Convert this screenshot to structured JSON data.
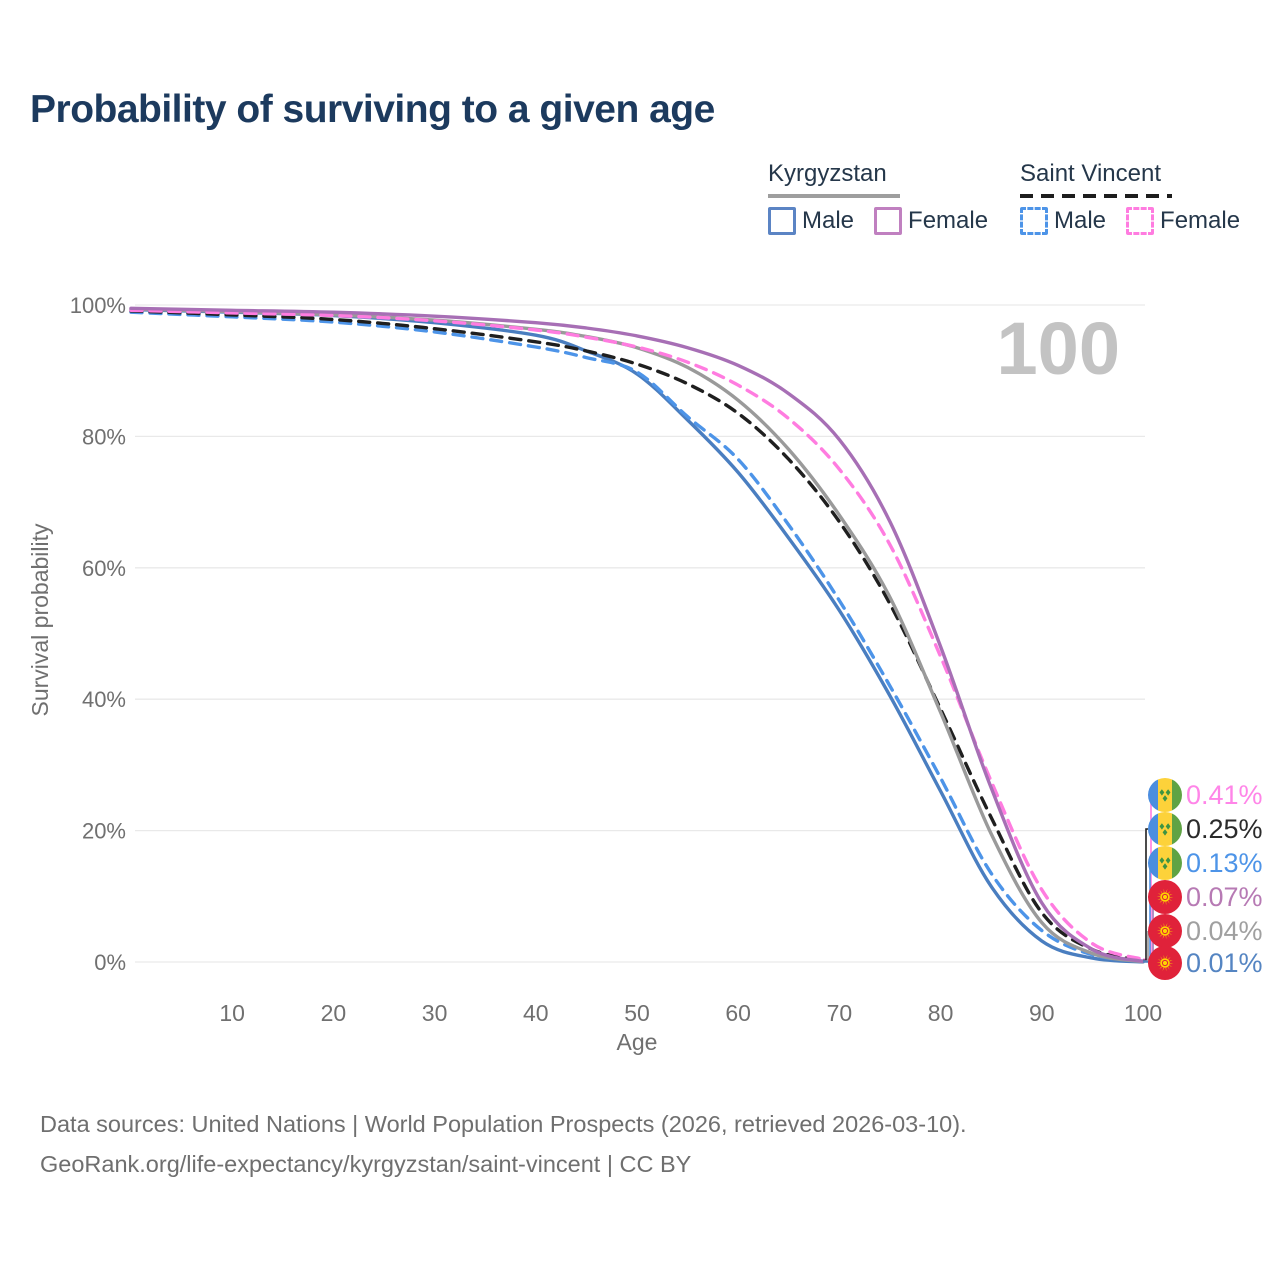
{
  "title": "Probability of surviving to a given age",
  "watermark": "100",
  "legend": {
    "groups": [
      {
        "country": "Kyrgyzstan",
        "underline_color": "#9e9e9e",
        "underline_dashed": false,
        "items": [
          {
            "label": "Male",
            "color": "#5b84c4",
            "dashed": false
          },
          {
            "label": "Female",
            "color": "#c080c0",
            "dashed": false
          }
        ]
      },
      {
        "country": "Saint Vincent",
        "underline_color": "#1d1d1d",
        "underline_dashed": true,
        "items": [
          {
            "label": "Male",
            "color": "#4d94e8",
            "dashed": true
          },
          {
            "label": "Female",
            "color": "#ff7ce0",
            "dashed": true
          }
        ]
      }
    ]
  },
  "chart_data": {
    "type": "line",
    "title": "Probability of surviving to a given age",
    "xlabel": "Age",
    "ylabel": "Survival probability",
    "xlim": [
      0,
      100
    ],
    "ylim": [
      0,
      100
    ],
    "x_ticks": [
      10,
      20,
      30,
      40,
      50,
      60,
      70,
      80,
      90,
      100
    ],
    "y_tick_labels": [
      "0%",
      "20%",
      "40%",
      "60%",
      "80%",
      "100%"
    ],
    "grid": "horizontal",
    "legend_position": "top-right",
    "x": [
      0,
      10,
      20,
      30,
      40,
      45,
      50,
      55,
      60,
      65,
      70,
      75,
      80,
      85,
      90,
      95,
      100
    ],
    "series": [
      {
        "id": "sv-female",
        "name": "Saint Vincent Female",
        "country": "Saint Vincent",
        "sex": "Female",
        "color": "#ff7ce0",
        "dashed": true,
        "end_label": "0.41%",
        "end_label_color": "#ff85e8",
        "flag": "saint-vincent",
        "values": [
          99.2,
          98.8,
          98.4,
          97.6,
          96.2,
          95.1,
          93.6,
          91.3,
          87.8,
          82.7,
          75.0,
          63.5,
          46.5,
          27.5,
          11.0,
          2.8,
          0.41
        ]
      },
      {
        "id": "sv-total",
        "name": "Saint Vincent",
        "country": "Saint Vincent",
        "sex": "Both",
        "color": "#1f1f1f",
        "dashed": true,
        "end_label": "0.25%",
        "end_label_color": "#2b2b2b",
        "flag": "saint-vincent",
        "values": [
          99.1,
          98.5,
          97.8,
          96.4,
          94.4,
          93.0,
          91.0,
          88.0,
          83.5,
          76.5,
          67.0,
          54.5,
          38.5,
          22.0,
          7.5,
          1.9,
          0.25
        ]
      },
      {
        "id": "sv-male",
        "name": "Saint Vincent Male",
        "country": "Saint Vincent",
        "sex": "Male",
        "color": "#4d94e8",
        "dashed": true,
        "end_label": "0.13%",
        "end_label_color": "#4d94e8",
        "flag": "saint-vincent",
        "values": [
          98.9,
          98.2,
          97.4,
          95.9,
          93.6,
          92.0,
          89.8,
          83.0,
          76.5,
          66.5,
          55.0,
          42.0,
          28.0,
          13.5,
          4.8,
          1.1,
          0.13
        ]
      },
      {
        "id": "kg-female",
        "name": "Kyrgyzstan Female",
        "country": "Kyrgyzstan",
        "sex": "Female",
        "color": "#a76fb5",
        "dashed": false,
        "end_label": "0.07%",
        "end_label_color": "#b77ab4",
        "flag": "kyrgyzstan",
        "values": [
          99.5,
          99.2,
          98.9,
          98.3,
          97.3,
          96.5,
          95.3,
          93.5,
          90.8,
          86.5,
          79.5,
          67.0,
          48.0,
          26.5,
          9.0,
          1.9,
          0.07
        ]
      },
      {
        "id": "kg-total",
        "name": "Kyrgyzstan",
        "country": "Kyrgyzstan",
        "sex": "Both",
        "color": "#9a9a9a",
        "dashed": false,
        "end_label": "0.04%",
        "end_label_color": "#a0a0a0",
        "flag": "kyrgyzstan",
        "values": [
          99.4,
          99.0,
          98.5,
          97.7,
          96.3,
          95.2,
          93.5,
          90.5,
          85.5,
          78.0,
          68.0,
          55.5,
          38.0,
          19.5,
          6.0,
          1.3,
          0.04
        ]
      },
      {
        "id": "kg-male",
        "name": "Kyrgyzstan Male",
        "country": "Kyrgyzstan",
        "sex": "Male",
        "color": "#4a7ec0",
        "dashed": false,
        "end_label": "0.01%",
        "end_label_color": "#5585c2",
        "flag": "kyrgyzstan",
        "values": [
          99.3,
          98.9,
          98.4,
          97.3,
          95.4,
          93.0,
          89.5,
          82.5,
          74.5,
          64.5,
          53.5,
          40.5,
          26.0,
          11.5,
          3.2,
          0.6,
          0.01
        ]
      }
    ]
  },
  "footer": {
    "line1": "Data sources: United Nations | World Population Prospects (2026, retrieved 2026-03-10).",
    "line2": "GeoRank.org/life-expectancy/kyrgyzstan/saint-vincent | CC BY"
  }
}
